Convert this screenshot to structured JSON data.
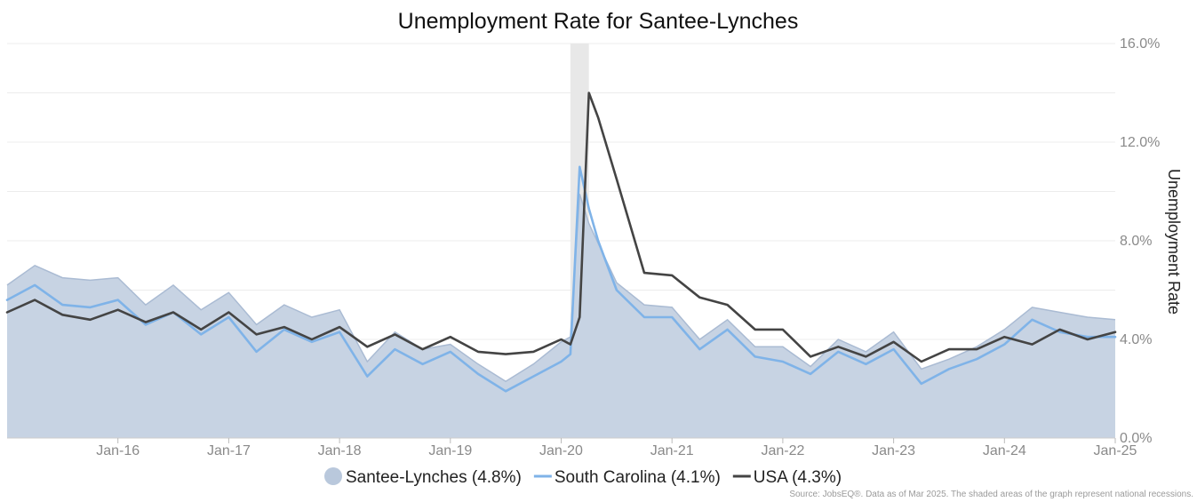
{
  "chart_data": {
    "type": "line",
    "title": "Unemployment Rate for Santee-Lynches",
    "ylabel": "Unemployment Rate",
    "xlabel": "",
    "ylim": [
      0,
      16
    ],
    "y_ticks": [
      "0.0%",
      "4.0%",
      "8.0%",
      "12.0%",
      "16.0%"
    ],
    "x_start": "2015-01",
    "x_end": "2025-01",
    "x_ticks": [
      {
        "label": "Jan-16",
        "date": "2016-01"
      },
      {
        "label": "Jan-17",
        "date": "2017-01"
      },
      {
        "label": "Jan-18",
        "date": "2018-01"
      },
      {
        "label": "Jan-19",
        "date": "2019-01"
      },
      {
        "label": "Jan-20",
        "date": "2020-01"
      },
      {
        "label": "Jan-21",
        "date": "2021-01"
      },
      {
        "label": "Jan-22",
        "date": "2022-01"
      },
      {
        "label": "Jan-23",
        "date": "2023-01"
      },
      {
        "label": "Jan-24",
        "date": "2024-01"
      },
      {
        "label": "Jan-25",
        "date": "2025-01"
      }
    ],
    "recessions": [
      {
        "start": "2020-02",
        "end": "2020-04"
      }
    ],
    "series": [
      {
        "name": "Santee-Lynches",
        "legend": "Santee-Lynches (4.8%)",
        "style": "area",
        "color": "#c7d3e3",
        "stroke": "#aabbd3",
        "x": [
          "2015-01",
          "2015-04",
          "2015-07",
          "2015-10",
          "2016-01",
          "2016-04",
          "2016-07",
          "2016-10",
          "2017-01",
          "2017-04",
          "2017-07",
          "2017-10",
          "2018-01",
          "2018-04",
          "2018-07",
          "2018-10",
          "2019-01",
          "2019-04",
          "2019-07",
          "2019-10",
          "2020-01",
          "2020-02",
          "2020-03",
          "2020-04",
          "2020-05",
          "2020-07",
          "2020-10",
          "2021-01",
          "2021-04",
          "2021-07",
          "2021-10",
          "2022-01",
          "2022-04",
          "2022-07",
          "2022-10",
          "2023-01",
          "2023-04",
          "2023-07",
          "2023-10",
          "2024-01",
          "2024-04",
          "2024-07",
          "2024-10",
          "2025-01"
        ],
        "values": [
          6.2,
          7.0,
          6.5,
          6.4,
          6.5,
          5.4,
          6.2,
          5.2,
          5.9,
          4.6,
          5.4,
          4.9,
          5.2,
          3.1,
          4.3,
          3.6,
          3.8,
          3.0,
          2.3,
          3.0,
          3.9,
          4.1,
          9.9,
          8.7,
          7.9,
          6.3,
          5.4,
          5.3,
          4.0,
          4.8,
          3.7,
          3.7,
          2.9,
          4.0,
          3.5,
          4.3,
          2.8,
          3.2,
          3.7,
          4.4,
          5.3,
          5.1,
          4.9,
          4.8
        ]
      },
      {
        "name": "South Carolina",
        "legend": "South Carolina (4.1%)",
        "style": "line",
        "color": "#7fb3e8",
        "x": [
          "2015-01",
          "2015-04",
          "2015-07",
          "2015-10",
          "2016-01",
          "2016-04",
          "2016-07",
          "2016-10",
          "2017-01",
          "2017-04",
          "2017-07",
          "2017-10",
          "2018-01",
          "2018-04",
          "2018-07",
          "2018-10",
          "2019-01",
          "2019-04",
          "2019-07",
          "2019-10",
          "2020-01",
          "2020-02",
          "2020-03",
          "2020-04",
          "2020-05",
          "2020-07",
          "2020-10",
          "2021-01",
          "2021-04",
          "2021-07",
          "2021-10",
          "2022-01",
          "2022-04",
          "2022-07",
          "2022-10",
          "2023-01",
          "2023-04",
          "2023-07",
          "2023-10",
          "2024-01",
          "2024-04",
          "2024-07",
          "2024-10",
          "2025-01"
        ],
        "values": [
          5.6,
          6.2,
          5.4,
          5.3,
          5.6,
          4.6,
          5.1,
          4.2,
          4.9,
          3.5,
          4.4,
          3.9,
          4.3,
          2.5,
          3.6,
          3.0,
          3.5,
          2.6,
          1.9,
          2.5,
          3.1,
          3.4,
          11.0,
          9.3,
          8.0,
          6.0,
          4.9,
          4.9,
          3.6,
          4.4,
          3.3,
          3.1,
          2.6,
          3.5,
          3.0,
          3.6,
          2.2,
          2.8,
          3.2,
          3.8,
          4.8,
          4.3,
          4.1,
          4.1
        ]
      },
      {
        "name": "USA",
        "legend": "USA (4.3%)",
        "style": "line",
        "color": "#444444",
        "x": [
          "2015-01",
          "2015-04",
          "2015-07",
          "2015-10",
          "2016-01",
          "2016-04",
          "2016-07",
          "2016-10",
          "2017-01",
          "2017-04",
          "2017-07",
          "2017-10",
          "2018-01",
          "2018-04",
          "2018-07",
          "2018-10",
          "2019-01",
          "2019-04",
          "2019-07",
          "2019-10",
          "2020-01",
          "2020-02",
          "2020-03",
          "2020-04",
          "2020-05",
          "2020-07",
          "2020-10",
          "2021-01",
          "2021-04",
          "2021-07",
          "2021-10",
          "2022-01",
          "2022-04",
          "2022-07",
          "2022-10",
          "2023-01",
          "2023-04",
          "2023-07",
          "2023-10",
          "2024-01",
          "2024-04",
          "2024-07",
          "2024-10",
          "2025-01"
        ],
        "values": [
          5.1,
          5.6,
          5.0,
          4.8,
          5.2,
          4.7,
          5.1,
          4.4,
          5.1,
          4.2,
          4.5,
          4.0,
          4.5,
          3.7,
          4.2,
          3.6,
          4.1,
          3.5,
          3.4,
          3.5,
          4.0,
          3.8,
          4.9,
          14.0,
          13.0,
          10.5,
          6.7,
          6.6,
          5.7,
          5.4,
          4.4,
          4.4,
          3.3,
          3.7,
          3.3,
          3.9,
          3.1,
          3.6,
          3.6,
          4.1,
          3.8,
          4.4,
          4.0,
          4.3
        ]
      }
    ],
    "source": "Source: JobsEQ®. Data as of Mar 2025. The shaded areas of the graph represent national recessions."
  }
}
